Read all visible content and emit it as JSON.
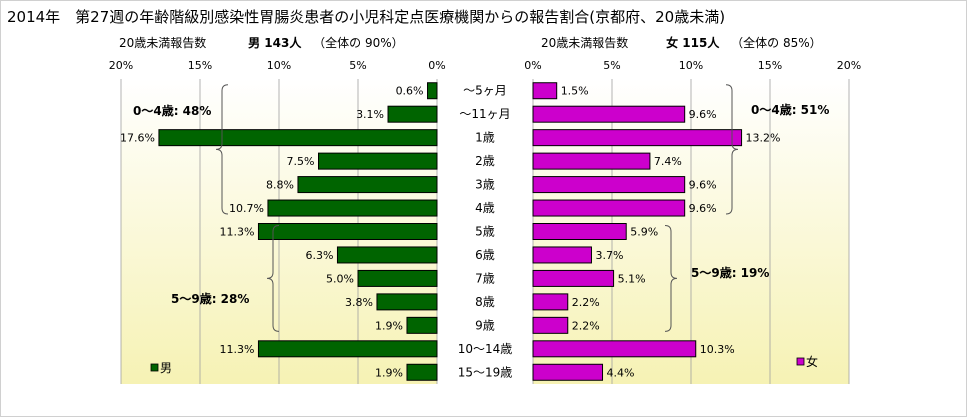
{
  "title": "2014年　第27週の年齢階級別感染性胃腸炎患者の小児科定点医療機関からの報告割合(京都府、20歳未満)",
  "male_header": {
    "prefix": "20歳未満報告数",
    "label": "男 143人",
    "suffix": "（全体の  90%）"
  },
  "female_header": {
    "prefix": "20歳未満報告数",
    "label": "女 115人",
    "suffix": "（全体の  85%）"
  },
  "chart_data": {
    "type": "bar",
    "categories": [
      "～5ヶ月",
      "～11ヶ月",
      "1歳",
      "2歳",
      "3歳",
      "4歳",
      "5歳",
      "6歳",
      "7歳",
      "8歳",
      "9歳",
      "10～14歳",
      "15～19歳"
    ],
    "series": [
      {
        "name": "男",
        "color": "#006400",
        "values": [
          0.6,
          3.1,
          17.6,
          7.5,
          8.8,
          10.7,
          11.3,
          6.3,
          5.0,
          3.8,
          1.9,
          11.3,
          1.9
        ],
        "labels": [
          "0.6%",
          "3.1%",
          "17.6%",
          "7.5%",
          "8.8%",
          "10.7%",
          "11.3%",
          "6.3%",
          "5.0%",
          "3.8%",
          "1.9%",
          "11.3%",
          "1.9%"
        ],
        "brackets": [
          "0～4歳: 48%",
          "5～9歳: 28%"
        ],
        "axis_ticks": [
          "20%",
          "15%",
          "10%",
          "5%",
          "0%"
        ],
        "xlim": [
          0,
          20
        ]
      },
      {
        "name": "女",
        "color": "#cc00cc",
        "values": [
          1.5,
          9.6,
          13.2,
          7.4,
          9.6,
          9.6,
          5.9,
          3.7,
          5.1,
          2.2,
          2.2,
          10.3,
          4.4
        ],
        "labels": [
          "1.5%",
          "9.6%",
          "13.2%",
          "7.4%",
          "9.6%",
          "9.6%",
          "5.9%",
          "3.7%",
          "5.1%",
          "2.2%",
          "2.2%",
          "10.3%",
          "4.4%"
        ],
        "brackets": [
          "0～4歳: 51%",
          "5～9歳: 19%"
        ],
        "axis_ticks": [
          "0%",
          "5%",
          "10%",
          "15%",
          "20%"
        ],
        "xlim": [
          0,
          20
        ]
      }
    ],
    "legend": [
      "男",
      "女"
    ],
    "grid": true
  }
}
